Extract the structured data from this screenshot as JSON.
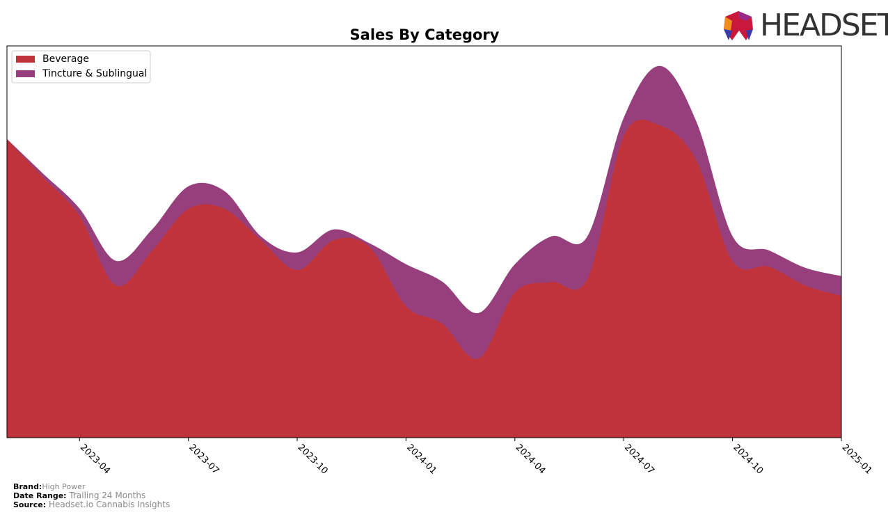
{
  "chart_data": {
    "type": "area",
    "stacked": true,
    "title": "Sales By Category",
    "x": [
      "2023-02",
      "2023-03",
      "2023-04",
      "2023-05",
      "2023-06",
      "2023-07",
      "2023-08",
      "2023-09",
      "2023-10",
      "2023-11",
      "2023-12",
      "2024-01",
      "2024-02",
      "2024-03",
      "2024-04",
      "2024-05",
      "2024-06",
      "2024-07",
      "2024-08",
      "2024-09",
      "2024-10",
      "2024-11",
      "2024-12",
      "2025-01"
    ],
    "xlim": [
      "2023-02",
      "2025-01"
    ],
    "xticks": [
      "2023-04",
      "2023-07",
      "2023-10",
      "2024-01",
      "2024-04",
      "2024-07",
      "2024-10",
      "2025-01"
    ],
    "ylim": [
      0,
      563
    ],
    "grid": false,
    "legend": "upper left",
    "series": [
      {
        "name": "Beverage",
        "color": "#c0333a",
        "values": [
          429,
          374,
          319,
          219,
          269,
          329,
          329,
          284,
          241,
          284,
          274,
          189,
          164,
          114,
          209,
          224,
          229,
          434,
          449,
          399,
          254,
          246,
          219,
          204
        ]
      },
      {
        "name": "Tincture & Sublingual",
        "color": "#963f7c",
        "values": [
          0,
          5,
          10,
          35,
          30,
          32,
          25,
          5,
          25,
          15,
          5,
          60,
          60,
          65,
          40,
          65,
          60,
          25,
          85,
          55,
          35,
          23,
          25,
          28
        ]
      }
    ]
  },
  "brand_label": "Brand:",
  "brand": "High Power",
  "date_range_label": "Date Range:",
  "date_range": "Trailing 24 Months",
  "source_label": "Source:",
  "source": "Headset.io Cannabis Insights",
  "logo": "HEADSET"
}
